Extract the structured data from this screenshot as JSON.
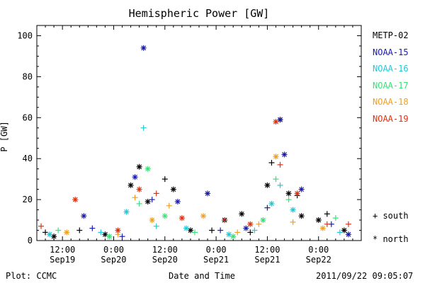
{
  "chart_data": {
    "type": "scatter",
    "title": "Hemispheric Power [GW]",
    "ylabel": "P [GW]",
    "xlabel": "Date and Time",
    "ylim": [
      0,
      105
    ],
    "xlim": [
      "2011-09-19T06:00",
      "2011-09-22T10:00"
    ],
    "yticks": [
      0,
      20,
      40,
      60,
      80,
      100
    ],
    "xticks": [
      {
        "time": "2011-09-19T12:00",
        "line1": "12:00",
        "line2": "Sep19"
      },
      {
        "time": "2011-09-20T00:00",
        "line1": "0:00",
        "line2": "Sep20"
      },
      {
        "time": "2011-09-20T12:00",
        "line1": "12:00",
        "line2": "Sep20"
      },
      {
        "time": "2011-09-21T00:00",
        "line1": "0:00",
        "line2": "Sep21"
      },
      {
        "time": "2011-09-21T12:00",
        "line1": "12:00",
        "line2": "Sep21"
      },
      {
        "time": "2011-09-22T00:00",
        "line1": "0:00",
        "line2": "Sep22"
      }
    ],
    "grid": false,
    "legend_position": "right",
    "markers": {
      "south": "+ south",
      "north": "* north"
    },
    "series": [
      {
        "name": "METP-02",
        "color": "#000000",
        "points": [
          {
            "t": "2011-09-19T08:00",
            "v": 4,
            "h": "S"
          },
          {
            "t": "2011-09-19T10:00",
            "v": 2,
            "h": "N"
          },
          {
            "t": "2011-09-19T16:00",
            "v": 5,
            "h": "S"
          },
          {
            "t": "2011-09-19T22:00",
            "v": 3,
            "h": "N"
          },
          {
            "t": "2011-09-20T04:00",
            "v": 27,
            "h": "N"
          },
          {
            "t": "2011-09-20T06:00",
            "v": 36,
            "h": "N"
          },
          {
            "t": "2011-09-20T08:00",
            "v": 19,
            "h": "N"
          },
          {
            "t": "2011-09-20T12:00",
            "v": 30,
            "h": "S"
          },
          {
            "t": "2011-09-20T14:00",
            "v": 25,
            "h": "N"
          },
          {
            "t": "2011-09-20T18:00",
            "v": 5,
            "h": "N"
          },
          {
            "t": "2011-09-20T23:00",
            "v": 5,
            "h": "S"
          },
          {
            "t": "2011-09-21T02:00",
            "v": 10,
            "h": "N"
          },
          {
            "t": "2011-09-21T06:00",
            "v": 13,
            "h": "N"
          },
          {
            "t": "2011-09-21T08:00",
            "v": 4,
            "h": "S"
          },
          {
            "t": "2011-09-21T12:00",
            "v": 27,
            "h": "N"
          },
          {
            "t": "2011-09-21T13:00",
            "v": 38,
            "h": "S"
          },
          {
            "t": "2011-09-21T15:00",
            "v": 59,
            "h": "N"
          },
          {
            "t": "2011-09-21T17:00",
            "v": 23,
            "h": "N"
          },
          {
            "t": "2011-09-21T19:00",
            "v": 22,
            "h": "S"
          },
          {
            "t": "2011-09-21T20:00",
            "v": 12,
            "h": "N"
          },
          {
            "t": "2011-09-22T00:00",
            "v": 10,
            "h": "N"
          },
          {
            "t": "2011-09-22T02:00",
            "v": 13,
            "h": "S"
          },
          {
            "t": "2011-09-22T06:00",
            "v": 5,
            "h": "N"
          }
        ]
      },
      {
        "name": "NOAA-15",
        "color": "#1a1aaa",
        "points": [
          {
            "t": "2011-09-19T17:00",
            "v": 12,
            "h": "N"
          },
          {
            "t": "2011-09-19T19:00",
            "v": 6,
            "h": "S"
          },
          {
            "t": "2011-09-20T02:00",
            "v": 2,
            "h": "S"
          },
          {
            "t": "2011-09-20T05:00",
            "v": 31,
            "h": "N"
          },
          {
            "t": "2011-09-20T07:00",
            "v": 94,
            "h": "N"
          },
          {
            "t": "2011-09-20T09:00",
            "v": 20,
            "h": "S"
          },
          {
            "t": "2011-09-20T15:00",
            "v": 19,
            "h": "N"
          },
          {
            "t": "2011-09-20T22:00",
            "v": 23,
            "h": "N"
          },
          {
            "t": "2011-09-21T01:00",
            "v": 5,
            "h": "S"
          },
          {
            "t": "2011-09-21T07:00",
            "v": 6,
            "h": "N"
          },
          {
            "t": "2011-09-21T12:00",
            "v": 16,
            "h": "S"
          },
          {
            "t": "2011-09-21T15:00",
            "v": 59,
            "h": "N"
          },
          {
            "t": "2011-09-21T16:00",
            "v": 42,
            "h": "N"
          },
          {
            "t": "2011-09-21T20:00",
            "v": 25,
            "h": "N"
          },
          {
            "t": "2011-09-22T03:00",
            "v": 8,
            "h": "S"
          },
          {
            "t": "2011-09-22T07:00",
            "v": 3,
            "h": "N"
          }
        ]
      },
      {
        "name": "NOAA-16",
        "color": "#22c8d8",
        "points": [
          {
            "t": "2011-09-19T09:00",
            "v": 3,
            "h": "N"
          },
          {
            "t": "2011-09-19T21:00",
            "v": 4,
            "h": "S"
          },
          {
            "t": "2011-09-20T03:00",
            "v": 14,
            "h": "N"
          },
          {
            "t": "2011-09-20T07:00",
            "v": 55,
            "h": "S"
          },
          {
            "t": "2011-09-20T10:00",
            "v": 7,
            "h": "S"
          },
          {
            "t": "2011-09-20T17:00",
            "v": 6,
            "h": "N"
          },
          {
            "t": "2011-09-21T03:00",
            "v": 3,
            "h": "N"
          },
          {
            "t": "2011-09-21T09:00",
            "v": 5,
            "h": "S"
          },
          {
            "t": "2011-09-21T13:00",
            "v": 18,
            "h": "N"
          },
          {
            "t": "2011-09-21T15:00",
            "v": 27,
            "h": "S"
          },
          {
            "t": "2011-09-21T18:00",
            "v": 15,
            "h": "N"
          },
          {
            "t": "2011-09-22T05:00",
            "v": 4,
            "h": "S"
          }
        ]
      },
      {
        "name": "NOAA-17",
        "color": "#3ce07a",
        "points": [
          {
            "t": "2011-09-19T11:00",
            "v": 5,
            "h": "S"
          },
          {
            "t": "2011-09-19T23:00",
            "v": 2,
            "h": "N"
          },
          {
            "t": "2011-09-20T06:00",
            "v": 18,
            "h": "S"
          },
          {
            "t": "2011-09-20T08:00",
            "v": 35,
            "h": "N"
          },
          {
            "t": "2011-09-20T12:00",
            "v": 12,
            "h": "N"
          },
          {
            "t": "2011-09-20T19:00",
            "v": 4,
            "h": "S"
          },
          {
            "t": "2011-09-21T04:00",
            "v": 2,
            "h": "N"
          },
          {
            "t": "2011-09-21T11:00",
            "v": 10,
            "h": "N"
          },
          {
            "t": "2011-09-21T14:00",
            "v": 30,
            "h": "S"
          },
          {
            "t": "2011-09-21T17:00",
            "v": 20,
            "h": "S"
          },
          {
            "t": "2011-09-22T04:00",
            "v": 11,
            "h": "S"
          }
        ]
      },
      {
        "name": "NOAA-18",
        "color": "#f0a020",
        "points": [
          {
            "t": "2011-09-19T13:00",
            "v": 4,
            "h": "N"
          },
          {
            "t": "2011-09-20T01:00",
            "v": 3,
            "h": "S"
          },
          {
            "t": "2011-09-20T05:00",
            "v": 21,
            "h": "S"
          },
          {
            "t": "2011-09-20T09:00",
            "v": 10,
            "h": "N"
          },
          {
            "t": "2011-09-20T13:00",
            "v": 17,
            "h": "S"
          },
          {
            "t": "2011-09-20T21:00",
            "v": 12,
            "h": "N"
          },
          {
            "t": "2011-09-21T05:00",
            "v": 4,
            "h": "S"
          },
          {
            "t": "2011-09-21T10:00",
            "v": 8,
            "h": "S"
          },
          {
            "t": "2011-09-21T14:00",
            "v": 41,
            "h": "N"
          },
          {
            "t": "2011-09-21T18:00",
            "v": 9,
            "h": "S"
          },
          {
            "t": "2011-09-22T01:00",
            "v": 6,
            "h": "N"
          }
        ]
      },
      {
        "name": "NOAA-19",
        "color": "#e03010",
        "points": [
          {
            "t": "2011-09-19T07:00",
            "v": 7,
            "h": "S"
          },
          {
            "t": "2011-09-19T15:00",
            "v": 20,
            "h": "N"
          },
          {
            "t": "2011-09-20T01:00",
            "v": 5,
            "h": "N"
          },
          {
            "t": "2011-09-20T06:00",
            "v": 25,
            "h": "N"
          },
          {
            "t": "2011-09-20T10:00",
            "v": 23,
            "h": "S"
          },
          {
            "t": "2011-09-20T16:00",
            "v": 11,
            "h": "N"
          },
          {
            "t": "2011-09-21T02:00",
            "v": 10,
            "h": "S"
          },
          {
            "t": "2011-09-21T08:00",
            "v": 8,
            "h": "N"
          },
          {
            "t": "2011-09-21T14:00",
            "v": 58,
            "h": "N"
          },
          {
            "t": "2011-09-21T15:00",
            "v": 37,
            "h": "S"
          },
          {
            "t": "2011-09-21T19:00",
            "v": 23,
            "h": "N"
          },
          {
            "t": "2011-09-22T02:00",
            "v": 8,
            "h": "S"
          },
          {
            "t": "2011-09-22T07:00",
            "v": 8,
            "h": "S"
          }
        ]
      }
    ]
  },
  "footer": {
    "left": "Plot: CCMC",
    "center": "Date and Time",
    "right": "2011/09/22 09:05:07"
  }
}
